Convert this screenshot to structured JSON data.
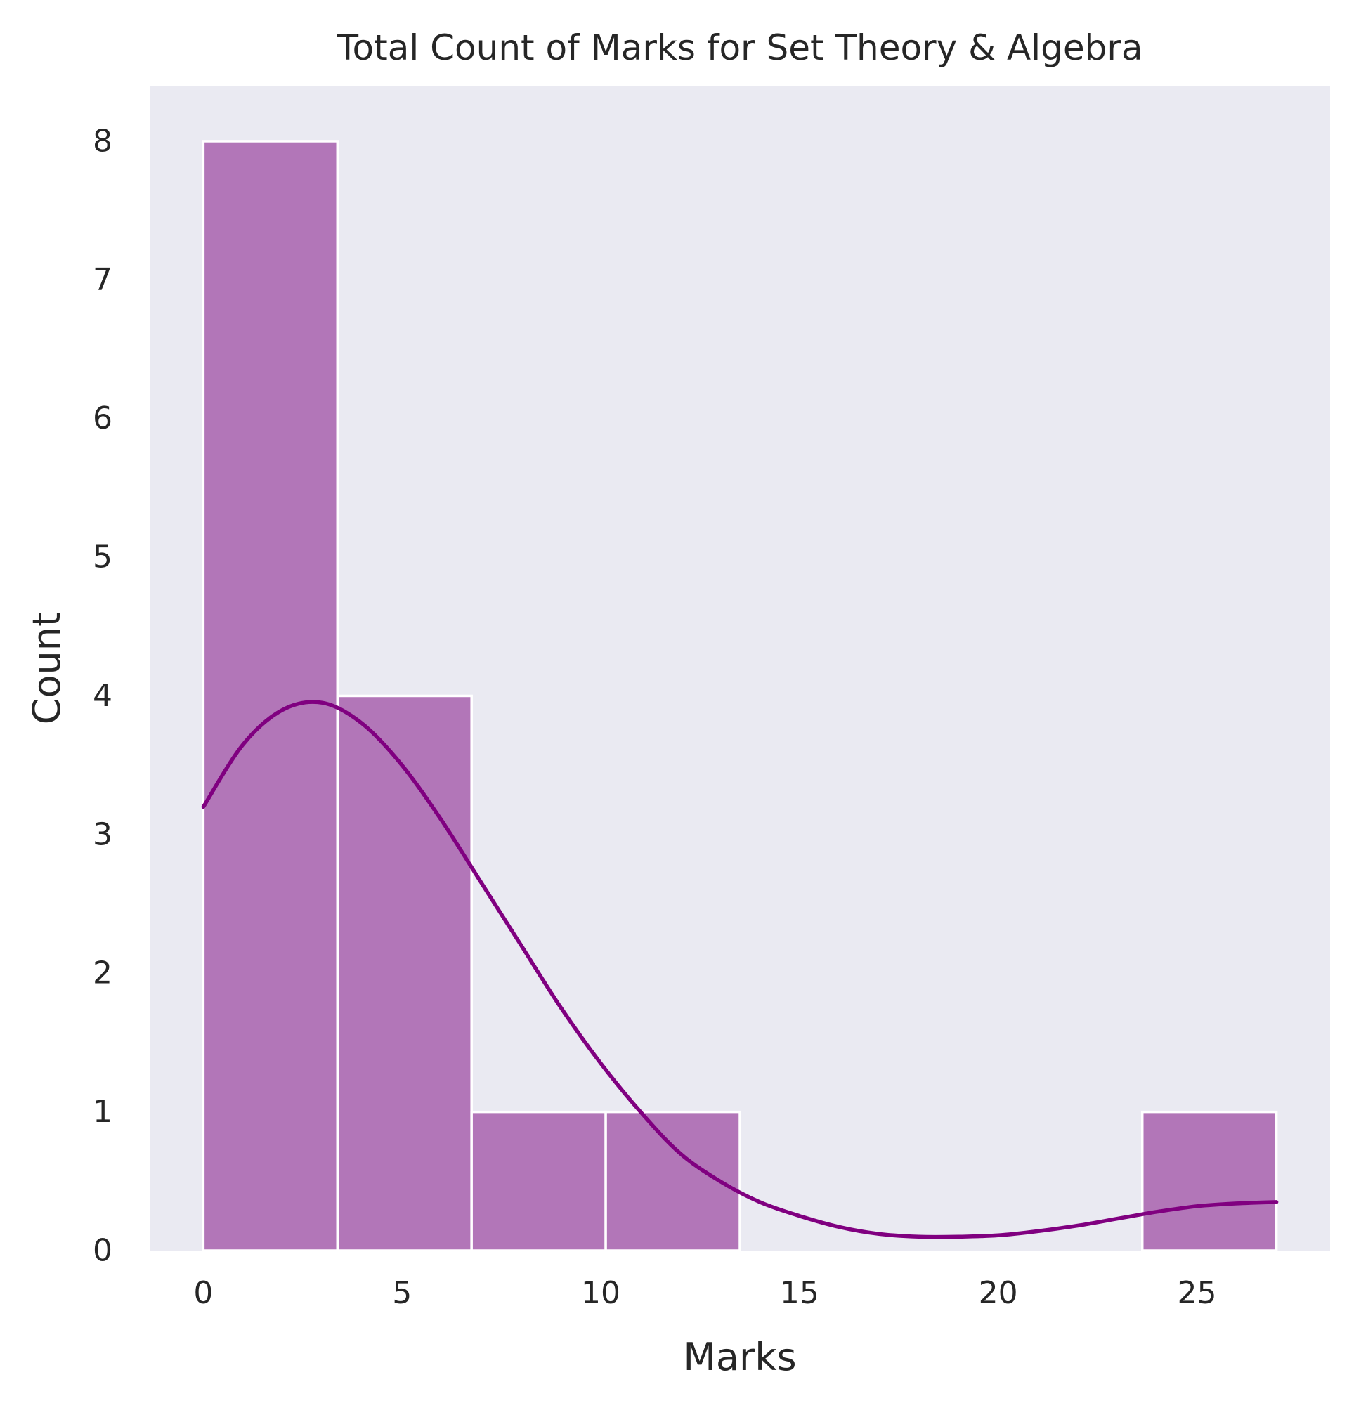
{
  "chart_data": {
    "type": "bar",
    "title": "Total Count of Marks for Set Theory & Algebra",
    "xlabel": "Marks",
    "ylabel": "Count",
    "bins": [
      {
        "x0": 0.0,
        "x1": 3.375,
        "count": 8
      },
      {
        "x0": 3.375,
        "x1": 6.75,
        "count": 4
      },
      {
        "x0": 6.75,
        "x1": 10.125,
        "count": 1
      },
      {
        "x0": 10.125,
        "x1": 13.5,
        "count": 1
      },
      {
        "x0": 13.5,
        "x1": 16.875,
        "count": 0
      },
      {
        "x0": 16.875,
        "x1": 20.25,
        "count": 0
      },
      {
        "x0": 20.25,
        "x1": 23.625,
        "count": 0
      },
      {
        "x0": 23.625,
        "x1": 27.0,
        "count": 1
      }
    ],
    "kde_curve": {
      "x": [
        0,
        1,
        2,
        3,
        4,
        5,
        6,
        7,
        8,
        9,
        10,
        11,
        12,
        13,
        14,
        15,
        16,
        17,
        18,
        19,
        20,
        21,
        22,
        23,
        24,
        25,
        26,
        27
      ],
      "y": [
        3.2,
        3.65,
        3.9,
        3.95,
        3.8,
        3.5,
        3.1,
        2.65,
        2.2,
        1.75,
        1.35,
        1.0,
        0.7,
        0.5,
        0.35,
        0.25,
        0.17,
        0.12,
        0.1,
        0.1,
        0.11,
        0.14,
        0.18,
        0.23,
        0.28,
        0.32,
        0.34,
        0.35
      ]
    },
    "xlim": [
      -1.35,
      28.35
    ],
    "ylim": [
      0,
      8.4
    ],
    "x_ticks": [
      0,
      5,
      10,
      15,
      20,
      25
    ],
    "y_ticks": [
      0,
      1,
      2,
      3,
      4,
      5,
      6,
      7,
      8
    ],
    "grid": false,
    "colors": {
      "background": "#eaeaf2",
      "bar_fill": "#b276b8",
      "bar_edge": "#ffffff",
      "kde_line": "#800080"
    }
  }
}
